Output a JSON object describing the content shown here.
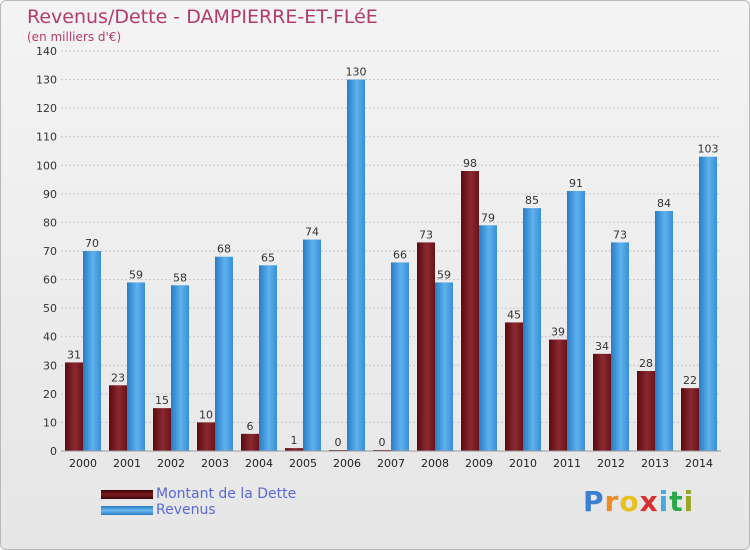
{
  "header": {
    "title": "Revenus/Dette - DAMPIERRE-ET-FLéE",
    "subtitle": "(en milliers d'€)"
  },
  "legend": {
    "items": [
      {
        "label": "Montant de la Dette",
        "color": "#7a1b1f"
      },
      {
        "label": "Revenus",
        "color": "#3d97dc"
      }
    ]
  },
  "logo": {
    "text": "Proxiti",
    "letter_colors": [
      "#3a7fd0",
      "#f08a24",
      "#e8c020",
      "#d83030",
      "#4aa8e0",
      "#2aa84a",
      "#9aa620"
    ]
  },
  "chart_data": {
    "type": "bar",
    "title": "Revenus/Dette - DAMPIERRE-ET-FLéE",
    "subtitle": "(en milliers d'€)",
    "xlabel": "",
    "ylabel": "",
    "ylim": [
      0,
      140
    ],
    "yticks": [
      0,
      10,
      20,
      30,
      40,
      50,
      60,
      70,
      80,
      90,
      100,
      110,
      120,
      130,
      140
    ],
    "grid": true,
    "legend_position": "bottom-left",
    "categories": [
      "2000",
      "2001",
      "2002",
      "2003",
      "2004",
      "2005",
      "2006",
      "2007",
      "2008",
      "2009",
      "2010",
      "2011",
      "2012",
      "2013",
      "2014"
    ],
    "series": [
      {
        "name": "Montant de la Dette",
        "color": "#7a1b1f",
        "values": [
          31,
          23,
          15,
          10,
          6,
          1,
          0,
          0,
          73,
          98,
          45,
          39,
          34,
          28,
          22
        ]
      },
      {
        "name": "Revenus",
        "color": "#3d97dc",
        "values": [
          70,
          59,
          58,
          68,
          65,
          74,
          130,
          66,
          59,
          79,
          85,
          91,
          73,
          84,
          103
        ]
      }
    ]
  }
}
